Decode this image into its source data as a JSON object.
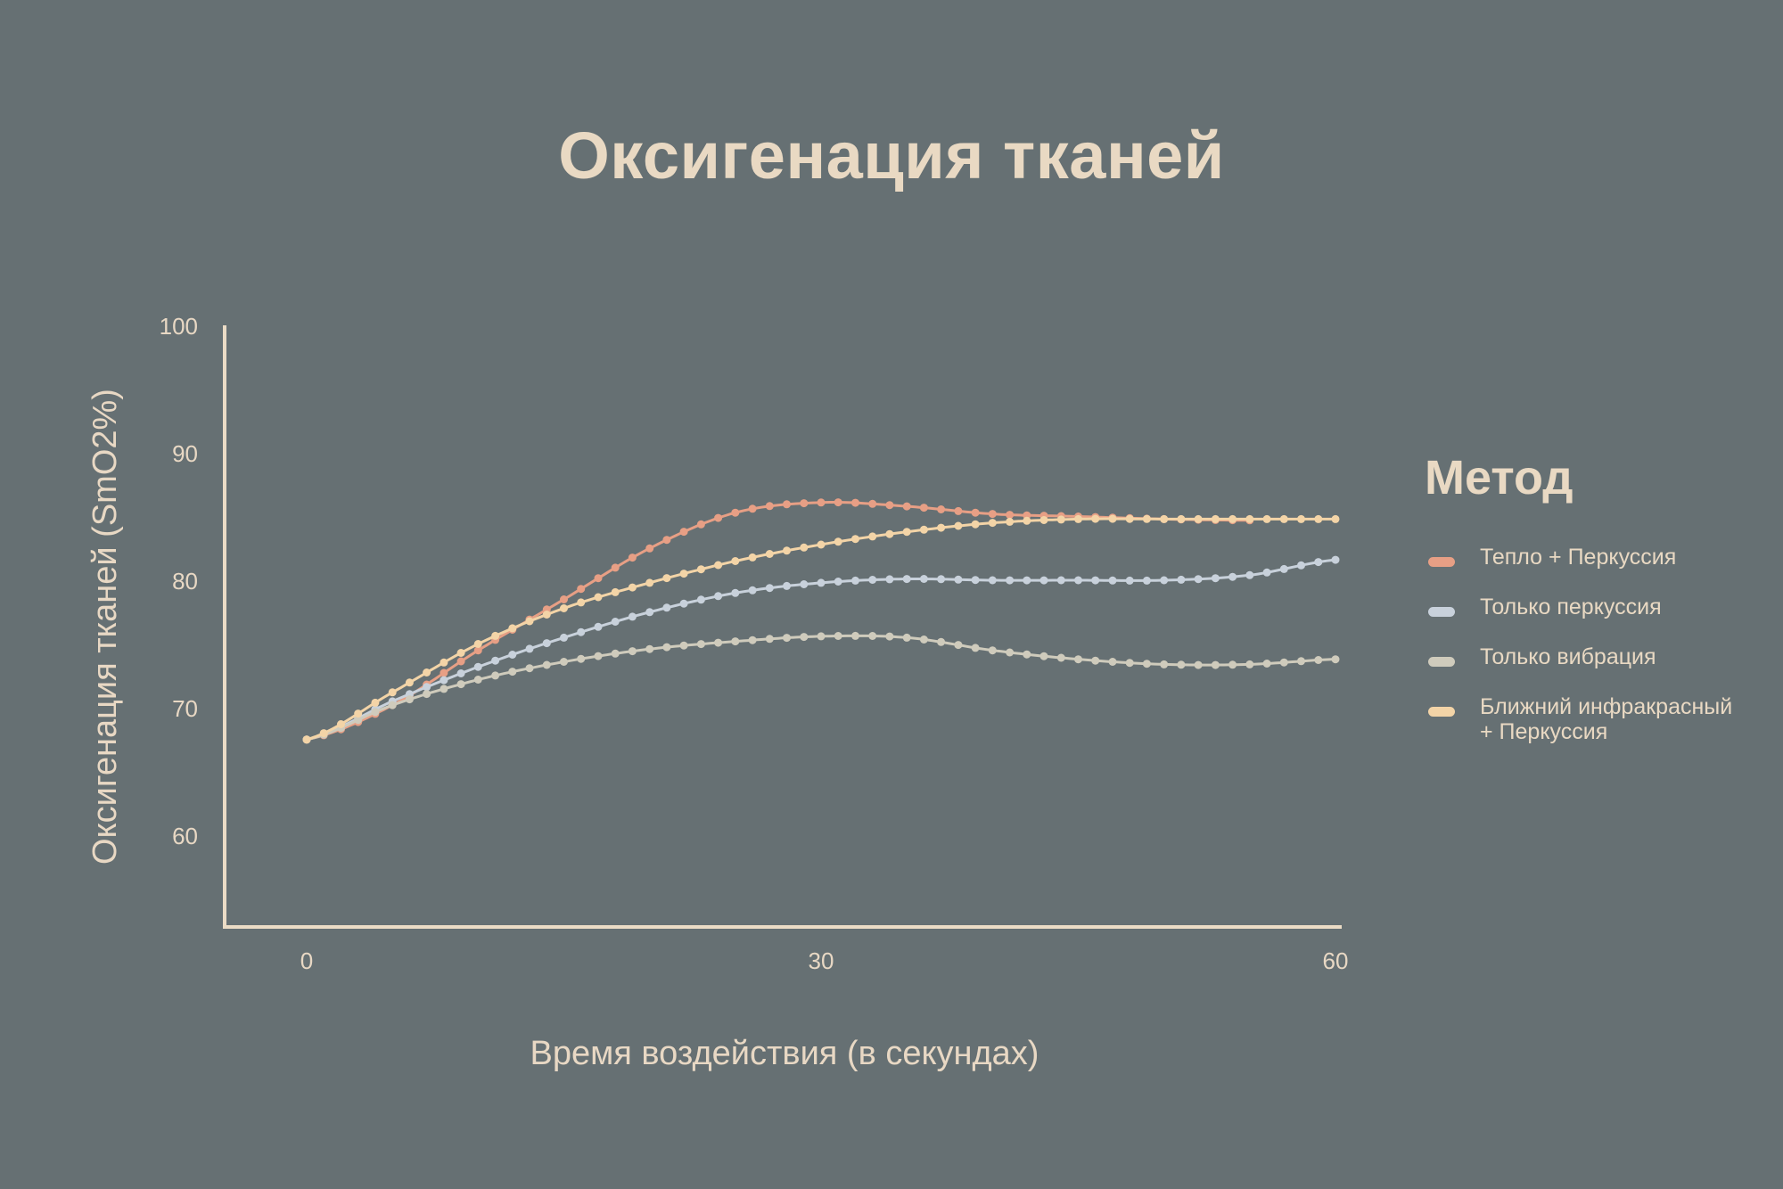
{
  "chart_data": {
    "type": "line",
    "title": "Оксигенация тканей",
    "xlabel": "Время воздействия (в секундах)",
    "ylabel": "Оксигенация тканей (SmO2%)",
    "xlim": [
      -5,
      60
    ],
    "ylim": [
      53,
      100
    ],
    "xticks": [
      0,
      30,
      60
    ],
    "yticks": [
      60,
      70,
      80,
      90,
      100
    ],
    "grid": false,
    "legend_title": "Метод",
    "legend_position": "right",
    "series": [
      {
        "name": "Тепло + Перкуссия",
        "color": "#e79f85",
        "points": [
          [
            0,
            67.5
          ],
          [
            5,
            70.2
          ],
          [
            10,
            74.5
          ],
          [
            15,
            78.5
          ],
          [
            20,
            82.5
          ],
          [
            25,
            85.3
          ],
          [
            30,
            86.1
          ],
          [
            35,
            85.8
          ],
          [
            40,
            85.2
          ],
          [
            45,
            85.0
          ],
          [
            50,
            84.8
          ],
          [
            55,
            84.7
          ]
        ]
      },
      {
        "name": "Только перкуссия",
        "color": "#c8d1db",
        "points": [
          [
            0,
            67.5
          ],
          [
            5,
            70.5
          ],
          [
            10,
            73.2
          ],
          [
            15,
            75.5
          ],
          [
            20,
            77.5
          ],
          [
            25,
            79.0
          ],
          [
            30,
            79.8
          ],
          [
            35,
            80.1
          ],
          [
            40,
            80.0
          ],
          [
            45,
            80.0
          ],
          [
            50,
            80.0
          ],
          [
            55,
            80.4
          ],
          [
            60,
            81.6
          ]
        ]
      },
      {
        "name": "Только вибрация",
        "color": "#cfcbbc",
        "points": [
          [
            0,
            67.5
          ],
          [
            5,
            70.2
          ],
          [
            10,
            72.2
          ],
          [
            15,
            73.6
          ],
          [
            20,
            74.6
          ],
          [
            25,
            75.2
          ],
          [
            30,
            75.6
          ],
          [
            35,
            75.5
          ],
          [
            40,
            74.5
          ],
          [
            45,
            73.8
          ],
          [
            50,
            73.4
          ],
          [
            55,
            73.4
          ],
          [
            60,
            73.8
          ]
        ]
      },
      {
        "name": "Ближний инфракрасный + Перкуссия",
        "color": "#f3d4a7",
        "points": [
          [
            0,
            67.5
          ],
          [
            5,
            71.2
          ],
          [
            10,
            75.0
          ],
          [
            15,
            77.8
          ],
          [
            20,
            79.8
          ],
          [
            25,
            81.5
          ],
          [
            30,
            82.8
          ],
          [
            35,
            83.8
          ],
          [
            40,
            84.5
          ],
          [
            45,
            84.8
          ],
          [
            50,
            84.8
          ],
          [
            55,
            84.8
          ],
          [
            60,
            84.8
          ]
        ]
      }
    ]
  }
}
